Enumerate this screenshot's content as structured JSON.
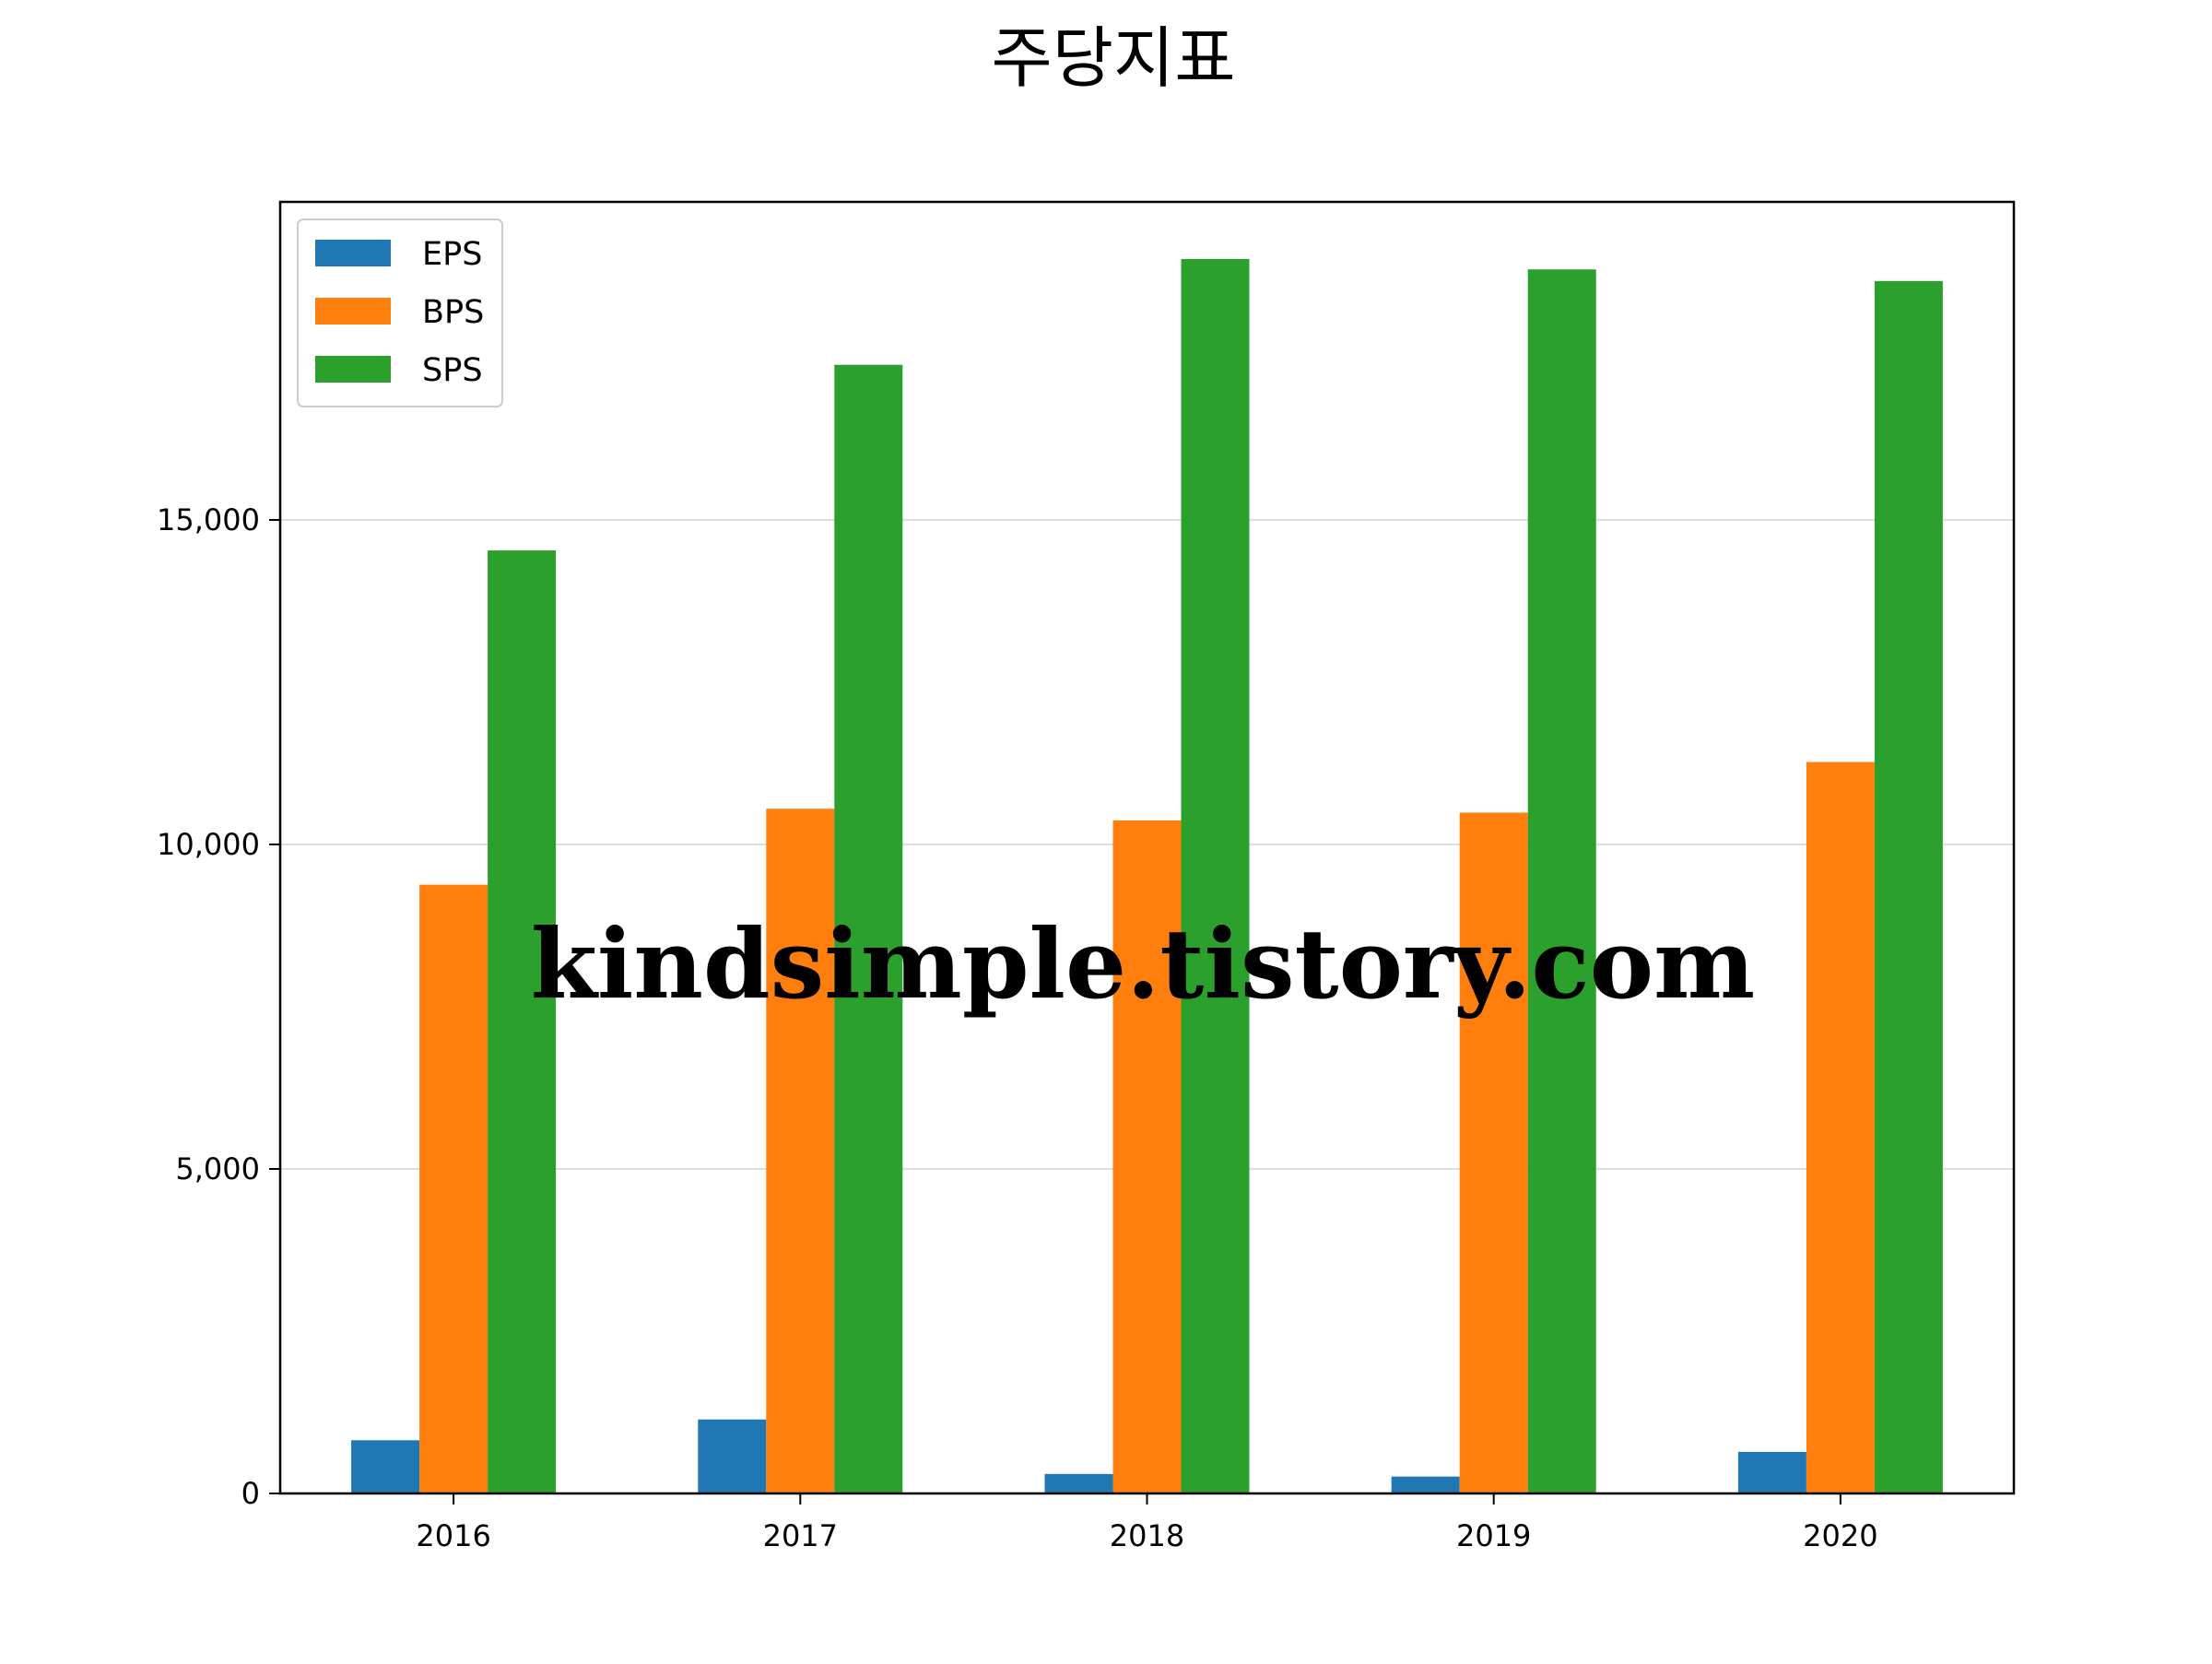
{
  "chart_data": {
    "type": "bar",
    "title": "주당지표",
    "xlabel": "",
    "ylabel": "",
    "categories": [
      "2016",
      "2017",
      "2018",
      "2019",
      "2020"
    ],
    "series": [
      {
        "name": "EPS",
        "color": "#1f77b4",
        "values": [
          820,
          1140,
          300,
          260,
          640
        ]
      },
      {
        "name": "BPS",
        "color": "#ff7f0e",
        "values": [
          9380,
          10550,
          10370,
          10490,
          11270
        ]
      },
      {
        "name": "SPS",
        "color": "#2ca02c",
        "values": [
          14530,
          17390,
          19020,
          18860,
          18680
        ]
      }
    ],
    "ylim": [
      0,
      19900
    ],
    "yticks": [
      0,
      5000,
      10000,
      15000
    ],
    "ytick_labels": [
      "0",
      "5,000",
      "10,000",
      "15,000"
    ],
    "grid": "horizontal",
    "legend_position": "upper left"
  },
  "watermark": {
    "text": "kindsimple.tistory.com",
    "color": "#e6a3e6"
  }
}
